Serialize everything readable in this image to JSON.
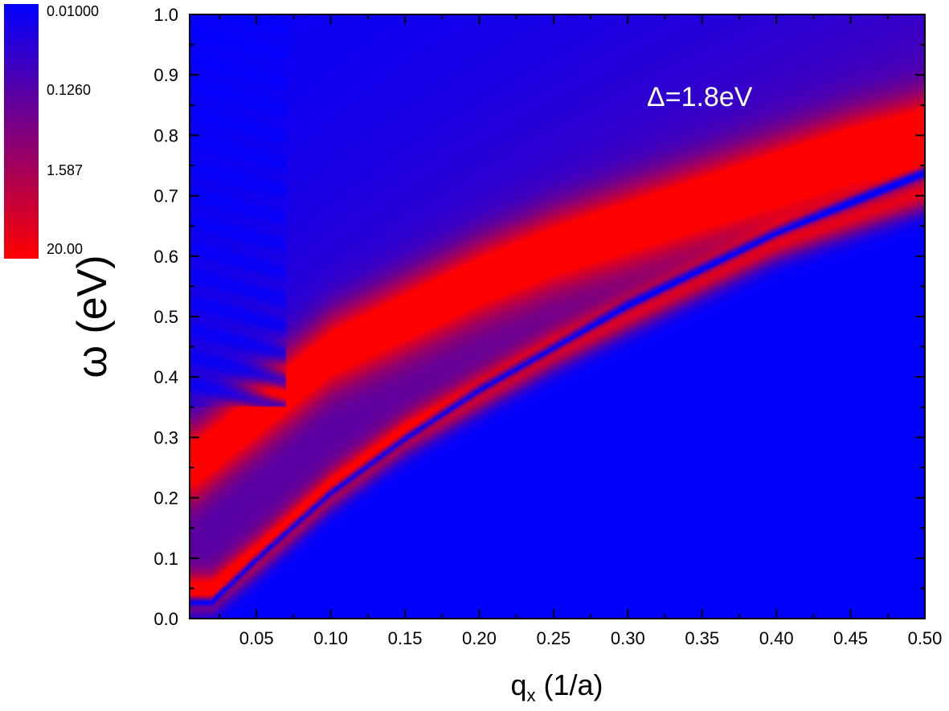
{
  "chart_data": {
    "type": "heatmap",
    "title": "",
    "xlabel": "q",
    "xlabel_subscript": "x",
    "xlabel_unit": " (1/a)",
    "ylabel": "ω (eV)",
    "xlim": [
      0.005,
      0.5
    ],
    "ylim": [
      0.0,
      1.0
    ],
    "x_ticks": [
      "0.05",
      "0.10",
      "0.15",
      "0.20",
      "0.25",
      "0.30",
      "0.35",
      "0.40",
      "0.45",
      "0.50"
    ],
    "x_tick_values": [
      0.05,
      0.1,
      0.15,
      0.2,
      0.25,
      0.3,
      0.35,
      0.4,
      0.45,
      0.5
    ],
    "y_ticks": [
      "0.0",
      "0.1",
      "0.2",
      "0.3",
      "0.4",
      "0.5",
      "0.6",
      "0.7",
      "0.8",
      "0.9",
      "1.0"
    ],
    "y_tick_values": [
      0.0,
      0.1,
      0.2,
      0.3,
      0.4,
      0.5,
      0.6,
      0.7,
      0.8,
      0.9,
      1.0
    ],
    "colorbar": {
      "scale": "log",
      "labels": [
        "0.01000",
        "0.1260",
        "1.587",
        "20.00"
      ],
      "values": [
        0.01,
        0.126,
        1.587,
        20.0
      ],
      "colors": [
        "#0000ff",
        "#ff0000"
      ]
    },
    "annotation": "Δ=1.8eV",
    "features": [
      {
        "name": "upper bright band",
        "points": [
          [
            0.01,
            0.26
          ],
          [
            0.05,
            0.34
          ],
          [
            0.1,
            0.44
          ],
          [
            0.15,
            0.5
          ],
          [
            0.2,
            0.56
          ],
          [
            0.25,
            0.61
          ],
          [
            0.3,
            0.65
          ],
          [
            0.35,
            0.69
          ],
          [
            0.4,
            0.73
          ],
          [
            0.45,
            0.77
          ],
          [
            0.5,
            0.8
          ]
        ]
      },
      {
        "name": "lower bright branch",
        "points": [
          [
            0.02,
            0.04
          ],
          [
            0.05,
            0.1
          ],
          [
            0.1,
            0.21
          ],
          [
            0.15,
            0.3
          ],
          [
            0.2,
            0.37
          ],
          [
            0.25,
            0.44
          ],
          [
            0.3,
            0.5
          ],
          [
            0.35,
            0.56
          ],
          [
            0.4,
            0.62
          ],
          [
            0.45,
            0.66
          ],
          [
            0.5,
            0.7
          ]
        ]
      },
      {
        "name": "dark dotted curve",
        "points": [
          [
            0.02,
            0.03
          ],
          [
            0.05,
            0.1
          ],
          [
            0.1,
            0.21
          ],
          [
            0.15,
            0.3
          ],
          [
            0.2,
            0.38
          ],
          [
            0.25,
            0.45
          ],
          [
            0.3,
            0.52
          ],
          [
            0.35,
            0.58
          ],
          [
            0.4,
            0.64
          ],
          [
            0.45,
            0.69
          ],
          [
            0.5,
            0.74
          ]
        ]
      }
    ]
  }
}
